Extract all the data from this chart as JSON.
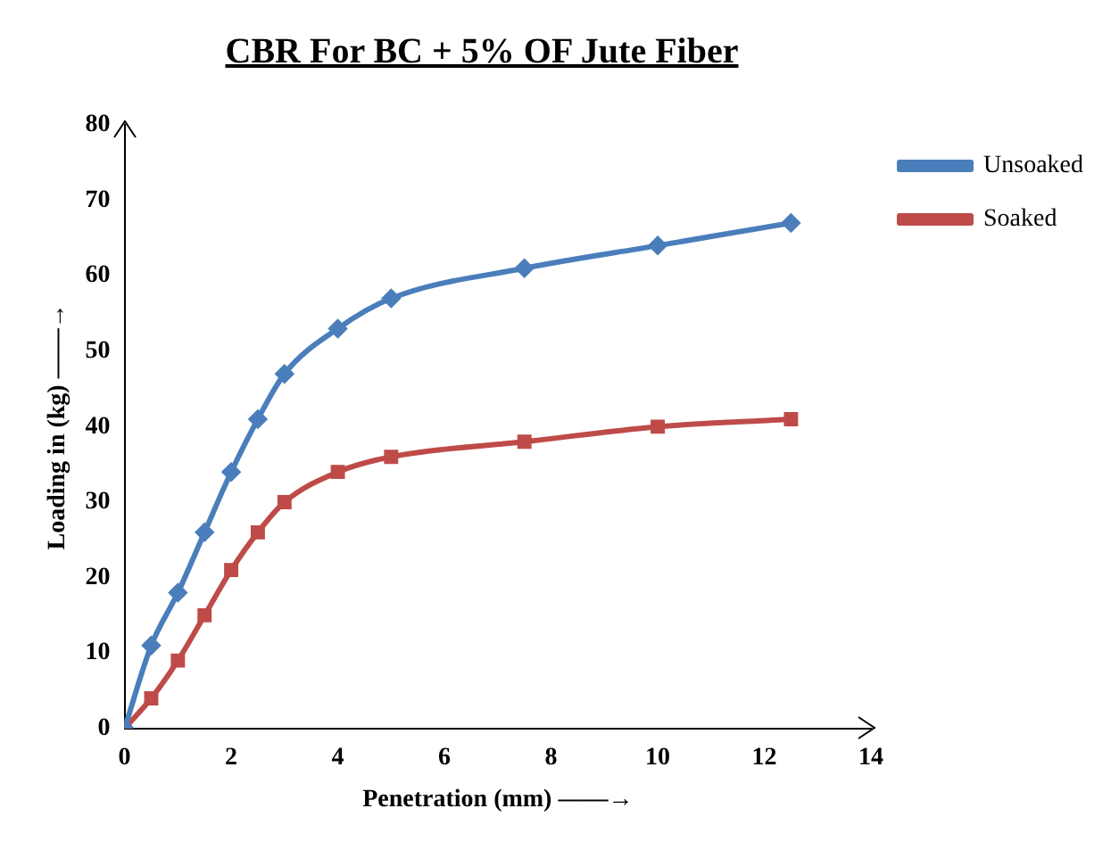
{
  "chart_data": {
    "type": "line",
    "title": "CBR For BC + 5% OF Jute Fiber",
    "xlabel": "Penetration (mm) ——→",
    "ylabel": "Loading in (kg) ——→",
    "x": [
      0,
      0.5,
      1,
      1.5,
      2,
      2.5,
      3,
      4,
      5,
      7.5,
      10,
      12.5
    ],
    "series": [
      {
        "name": "Unsoaked",
        "color": "#4a7ebb",
        "marker": "diamond",
        "values": [
          0,
          11,
          18,
          26,
          34,
          41,
          47,
          53,
          57,
          61,
          64,
          67
        ]
      },
      {
        "name": "Soaked",
        "color": "#be4b48",
        "marker": "square",
        "values": [
          0,
          4,
          9,
          15,
          21,
          26,
          30,
          34,
          36,
          38,
          40,
          41
        ]
      }
    ],
    "xlim": [
      0,
      14
    ],
    "xticks": [
      0,
      2,
      4,
      6,
      8,
      10,
      12,
      14
    ],
    "ylim": [
      0,
      80
    ],
    "yticks": [
      0,
      10,
      20,
      30,
      40,
      50,
      60,
      70,
      80
    ],
    "grid": false,
    "legend": "top right"
  }
}
